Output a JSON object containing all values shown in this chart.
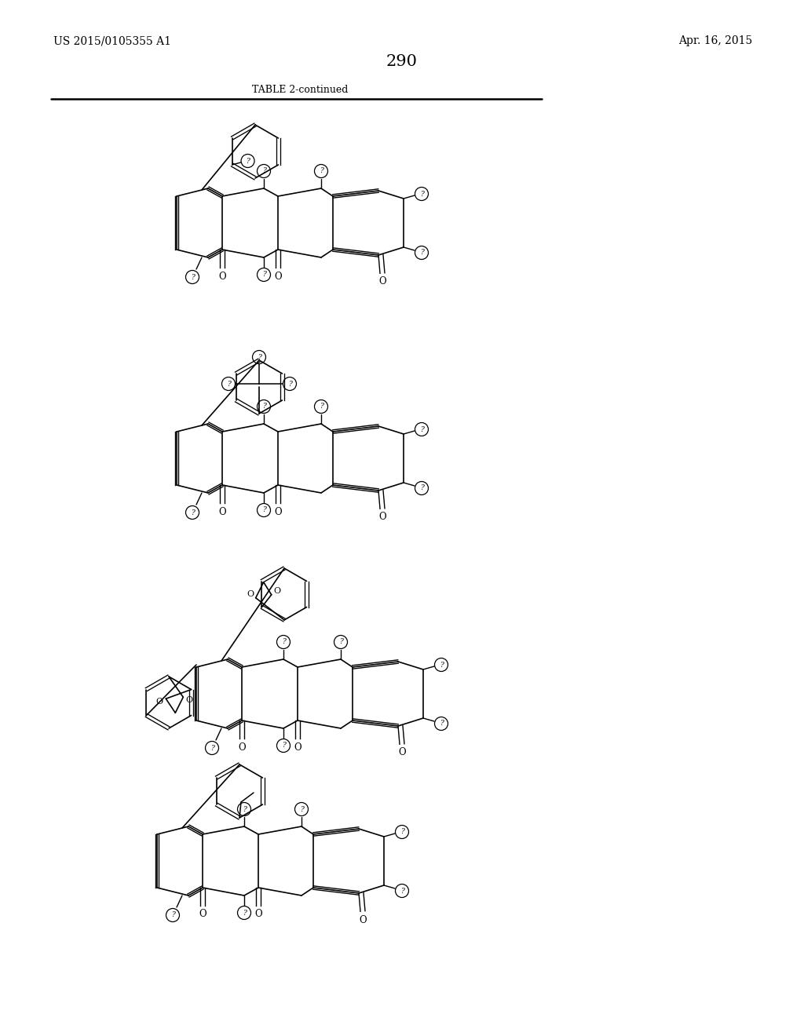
{
  "title_left": "US 2015/0105355 A1",
  "title_right": "Apr. 16, 2015",
  "page_number": "290",
  "table_title": "TABLE 2-continued",
  "bg": "#ffffff",
  "fg": "#000000"
}
